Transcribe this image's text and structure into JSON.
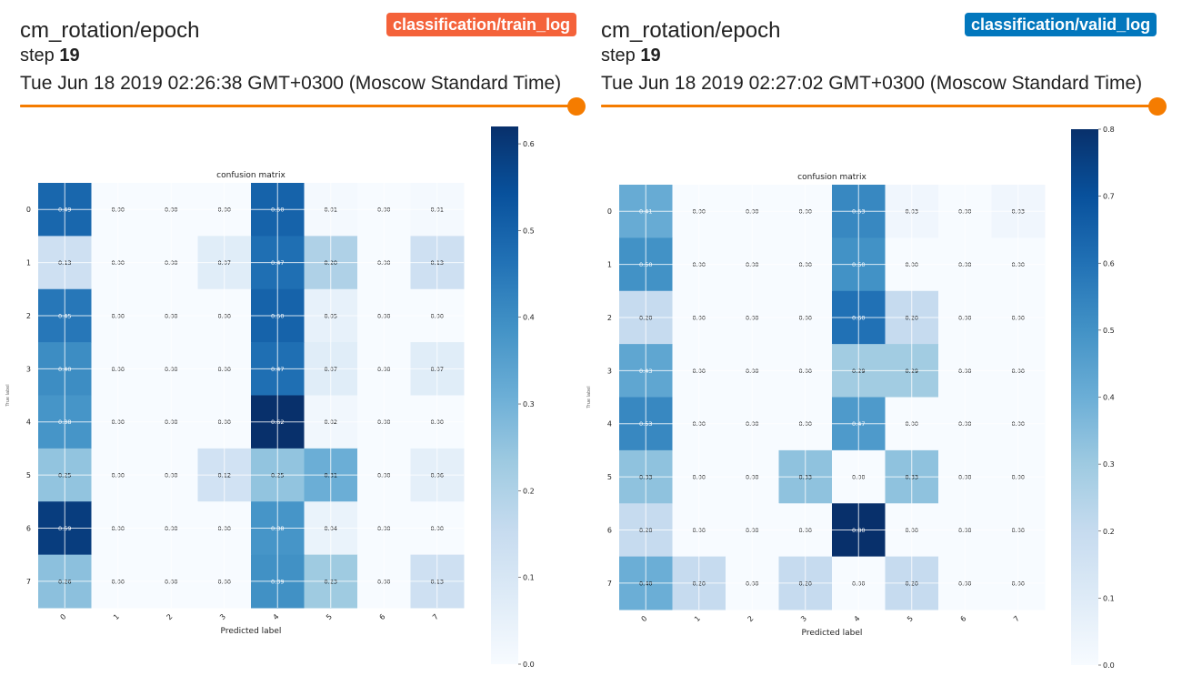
{
  "theme": {
    "slider_color": "#f57c00",
    "train_tag_color": "#f4623a",
    "valid_tag_color": "#0277bd"
  },
  "cards": [
    {
      "title": "cm_rotation/epoch",
      "step_label": "step",
      "step_value": "19",
      "timestamp": "Tue Jun 18 2019 02:26:38 GMT+0300 (Moscow Standard Time)",
      "run_tag": "classification/train_log",
      "slider_value": 1.0,
      "chart_data": {
        "type": "heatmap",
        "title": "confusion matrix",
        "xlabel": "Predicted label",
        "ylabel": "True label",
        "x_ticks": [
          "0",
          "1",
          "2",
          "3",
          "4",
          "5",
          "6",
          "7"
        ],
        "y_ticks": [
          "0",
          "1",
          "2",
          "3",
          "4",
          "5",
          "6",
          "7"
        ],
        "values": [
          [
            0.49,
            0.0,
            0.0,
            0.0,
            0.5,
            0.01,
            0.0,
            0.01
          ],
          [
            0.13,
            0.0,
            0.0,
            0.07,
            0.47,
            0.2,
            0.0,
            0.13
          ],
          [
            0.45,
            0.0,
            0.0,
            0.0,
            0.5,
            0.05,
            0.0,
            0.0
          ],
          [
            0.4,
            0.0,
            0.0,
            0.0,
            0.47,
            0.07,
            0.0,
            0.07
          ],
          [
            0.38,
            0.0,
            0.0,
            0.0,
            0.62,
            0.02,
            0.0,
            0.0
          ],
          [
            0.25,
            0.0,
            0.0,
            0.12,
            0.25,
            0.31,
            0.0,
            0.06
          ],
          [
            0.59,
            0.0,
            0.0,
            0.0,
            0.38,
            0.04,
            0.0,
            0.0
          ],
          [
            0.26,
            0.0,
            0.0,
            0.0,
            0.39,
            0.23,
            0.0,
            0.13
          ]
        ],
        "colormap": "Blues",
        "vmin": 0.0,
        "vmax": 0.62,
        "colorbar_ticks": [
          0.0,
          0.1,
          0.2,
          0.3,
          0.4,
          0.5,
          0.6
        ],
        "grid": true
      }
    },
    {
      "title": "cm_rotation/epoch",
      "step_label": "step",
      "step_value": "19",
      "timestamp": "Tue Jun 18 2019 02:27:02 GMT+0300 (Moscow Standard Time)",
      "run_tag": "classification/valid_log",
      "slider_value": 1.0,
      "chart_data": {
        "type": "heatmap",
        "title": "confusion matrix",
        "xlabel": "Predicted label",
        "ylabel": "True label",
        "x_ticks": [
          "0",
          "1",
          "2",
          "3",
          "4",
          "5",
          "6",
          "7"
        ],
        "y_ticks": [
          "0",
          "1",
          "2",
          "3",
          "4",
          "5",
          "6",
          "7"
        ],
        "values": [
          [
            0.41,
            0.0,
            0.0,
            0.0,
            0.53,
            0.03,
            0.0,
            0.03
          ],
          [
            0.5,
            0.0,
            0.0,
            0.0,
            0.5,
            0.0,
            0.0,
            0.0
          ],
          [
            0.2,
            0.0,
            0.0,
            0.0,
            0.6,
            0.2,
            0.0,
            0.0
          ],
          [
            0.43,
            0.0,
            0.0,
            0.0,
            0.29,
            0.29,
            0.0,
            0.0
          ],
          [
            0.53,
            0.0,
            0.0,
            0.0,
            0.47,
            0.0,
            0.0,
            0.0
          ],
          [
            0.33,
            0.0,
            0.0,
            0.33,
            0.0,
            0.33,
            0.0,
            0.0
          ],
          [
            0.2,
            0.0,
            0.0,
            0.0,
            0.8,
            0.0,
            0.0,
            0.0
          ],
          [
            0.4,
            0.2,
            0.0,
            0.2,
            0.0,
            0.2,
            0.0,
            0.0
          ]
        ],
        "colormap": "Blues",
        "vmin": 0.0,
        "vmax": 0.8,
        "colorbar_ticks": [
          0.0,
          0.1,
          0.2,
          0.3,
          0.4,
          0.5,
          0.6,
          0.7,
          0.8
        ],
        "grid": true
      }
    }
  ]
}
